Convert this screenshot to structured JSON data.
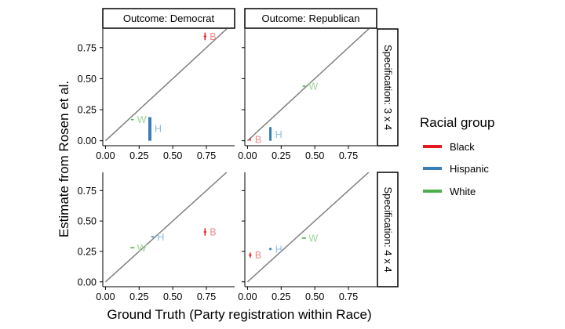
{
  "chart_data": {
    "type": "scatter",
    "title": "",
    "xlabel": "Ground Truth (Party registration within Race)",
    "ylabel": "Estimate from Rosen et al.",
    "xlim": [
      -0.02,
      0.96
    ],
    "ylim": [
      -0.04,
      0.9
    ],
    "x_ticks": [
      0.0,
      0.25,
      0.5,
      0.75
    ],
    "x_tick_labels": [
      "0.00",
      "0.25",
      "0.50",
      "0.75"
    ],
    "y_ticks": [
      0.0,
      0.25,
      0.5,
      0.75
    ],
    "y_tick_labels": [
      "0.00",
      "0.25",
      "0.50",
      "0.75"
    ],
    "facet_cols": [
      "Outcome: Democrat",
      "Outcome: Republican"
    ],
    "facet_rows": [
      "Specification: 3 x 4",
      "Specification: 4 x 4"
    ],
    "reference_line": "y = x",
    "legend": {
      "title": "Racial group",
      "entries": [
        {
          "name": "Black",
          "color": "#e41a1c"
        },
        {
          "name": "Hispanic",
          "color": "#377eb8"
        },
        {
          "name": "White",
          "color": "#4daf4a"
        }
      ]
    },
    "panels": [
      {
        "row": 0,
        "col": 0,
        "points": [
          {
            "group": "Black",
            "label": "B",
            "x": 0.74,
            "y": 0.84,
            "x_err": 0.01,
            "y_lo": 0.81,
            "y_hi": 0.87,
            "w": 1.5
          },
          {
            "group": "Hispanic",
            "label": "H",
            "x": 0.33,
            "y": 0.1,
            "x_err": 0.005,
            "y_lo": 0.0,
            "y_hi": 0.19,
            "w": 4
          },
          {
            "group": "White",
            "label": "W",
            "x": 0.2,
            "y": 0.17,
            "x_err": 0.01,
            "y_lo": 0.165,
            "y_hi": 0.175,
            "w": 1.5
          }
        ]
      },
      {
        "row": 0,
        "col": 1,
        "points": [
          {
            "group": "Black",
            "label": "B",
            "x": 0.02,
            "y": 0.01,
            "x_err": 0.005,
            "y_lo": 0.0,
            "y_hi": 0.02,
            "w": 1.5
          },
          {
            "group": "Hispanic",
            "label": "H",
            "x": 0.17,
            "y": 0.05,
            "x_err": 0.005,
            "y_lo": 0.0,
            "y_hi": 0.11,
            "w": 3
          },
          {
            "group": "White",
            "label": "W",
            "x": 0.42,
            "y": 0.44,
            "x_err": 0.01,
            "y_lo": 0.435,
            "y_hi": 0.445,
            "w": 1.5
          }
        ]
      },
      {
        "row": 1,
        "col": 0,
        "points": [
          {
            "group": "Black",
            "label": "B",
            "x": 0.74,
            "y": 0.41,
            "x_err": 0.01,
            "y_lo": 0.38,
            "y_hi": 0.44,
            "w": 1.5
          },
          {
            "group": "Hispanic",
            "label": "H",
            "x": 0.35,
            "y": 0.37,
            "x_err": 0.01,
            "y_lo": 0.365,
            "y_hi": 0.375,
            "w": 1.5
          },
          {
            "group": "White",
            "label": "W",
            "x": 0.2,
            "y": 0.28,
            "x_err": 0.015,
            "y_lo": 0.275,
            "y_hi": 0.285,
            "w": 1.5
          }
        ]
      },
      {
        "row": 1,
        "col": 1,
        "points": [
          {
            "group": "Black",
            "label": "B",
            "x": 0.02,
            "y": 0.22,
            "x_err": 0.01,
            "y_lo": 0.2,
            "y_hi": 0.24,
            "w": 1.5
          },
          {
            "group": "Hispanic",
            "label": "H",
            "x": 0.17,
            "y": 0.27,
            "x_err": 0.01,
            "y_lo": 0.26,
            "y_hi": 0.28,
            "w": 1.5
          },
          {
            "group": "White",
            "label": "W",
            "x": 0.42,
            "y": 0.36,
            "x_err": 0.015,
            "y_lo": 0.355,
            "y_hi": 0.365,
            "w": 1.5
          }
        ]
      }
    ]
  }
}
